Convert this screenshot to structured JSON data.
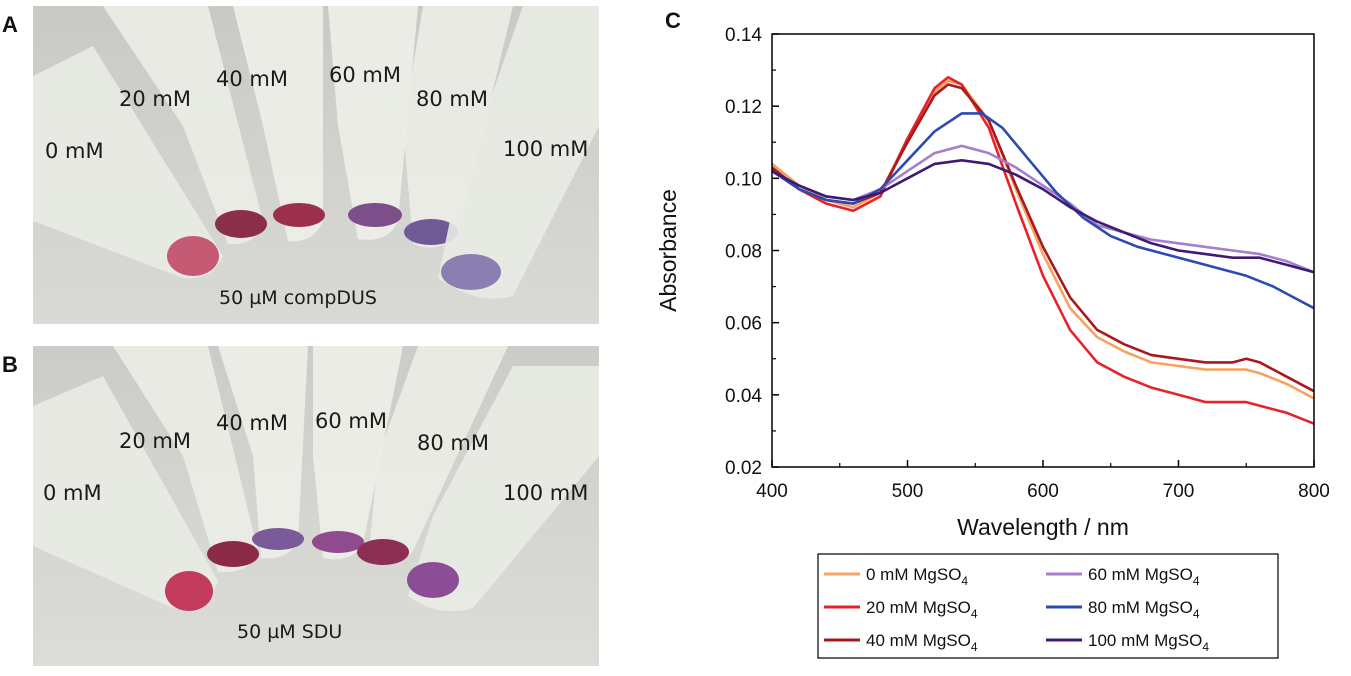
{
  "panels": {
    "a": {
      "letter": "A",
      "tube_labels": [
        "0 mM",
        "20 mM",
        "40 mM",
        "60 mM",
        "80 mM",
        "100 mM"
      ],
      "caption": "50 µM compDUS"
    },
    "b": {
      "letter": "B",
      "tube_labels": [
        "0 mM",
        "20 mM",
        "40 mM",
        "60 mM",
        "80 mM",
        "100 mM"
      ],
      "caption": "50 µM SDU"
    },
    "c": {
      "letter": "C"
    }
  },
  "chart_data": {
    "type": "line",
    "xlabel": "Wavelength / nm",
    "ylabel": "Absorbance",
    "xlim": [
      400,
      800
    ],
    "ylim": [
      0.02,
      0.14
    ],
    "xticks": [
      400,
      500,
      600,
      700,
      800
    ],
    "yticks": [
      "0.02",
      "0.04",
      "0.06",
      "0.08",
      "0.10",
      "0.12",
      "0.14"
    ],
    "legend_unit": "MgSO",
    "legend_subscript": "4",
    "series": [
      {
        "name": "0 mM MgSO4",
        "label": "0 mM ",
        "color": "#f4a460",
        "x": [
          400,
          420,
          440,
          460,
          480,
          500,
          520,
          530,
          540,
          560,
          580,
          600,
          620,
          640,
          660,
          680,
          700,
          720,
          740,
          750,
          760,
          780,
          800
        ],
        "y": [
          0.104,
          0.098,
          0.094,
          0.092,
          0.096,
          0.111,
          0.124,
          0.127,
          0.126,
          0.116,
          0.097,
          0.079,
          0.064,
          0.056,
          0.052,
          0.049,
          0.048,
          0.047,
          0.047,
          0.047,
          0.046,
          0.043,
          0.039
        ]
      },
      {
        "name": "20 mM MgSO4",
        "label": "20 mM ",
        "color": "#e8222a",
        "x": [
          400,
          420,
          440,
          460,
          480,
          500,
          520,
          530,
          540,
          560,
          580,
          600,
          620,
          640,
          660,
          680,
          700,
          720,
          740,
          750,
          760,
          780,
          800
        ],
        "y": [
          0.103,
          0.097,
          0.093,
          0.091,
          0.095,
          0.111,
          0.125,
          0.128,
          0.126,
          0.114,
          0.093,
          0.073,
          0.058,
          0.049,
          0.045,
          0.042,
          0.04,
          0.038,
          0.038,
          0.038,
          0.037,
          0.035,
          0.032
        ]
      },
      {
        "name": "40 mM MgSO4",
        "label": "40 mM ",
        "color": "#a8191f",
        "x": [
          400,
          420,
          440,
          460,
          480,
          500,
          520,
          530,
          540,
          560,
          580,
          600,
          620,
          640,
          660,
          680,
          700,
          720,
          740,
          750,
          760,
          780,
          800
        ],
        "y": [
          0.103,
          0.097,
          0.094,
          0.093,
          0.096,
          0.11,
          0.123,
          0.126,
          0.125,
          0.116,
          0.098,
          0.081,
          0.067,
          0.058,
          0.054,
          0.051,
          0.05,
          0.049,
          0.049,
          0.05,
          0.049,
          0.045,
          0.041
        ]
      },
      {
        "name": "60 mM MgSO4",
        "label": "60 mM ",
        "color": "#a57ed0",
        "x": [
          400,
          420,
          440,
          460,
          480,
          500,
          520,
          540,
          560,
          580,
          600,
          620,
          640,
          660,
          680,
          700,
          720,
          740,
          760,
          780,
          800
        ],
        "y": [
          0.102,
          0.098,
          0.095,
          0.094,
          0.097,
          0.102,
          0.107,
          0.109,
          0.107,
          0.103,
          0.098,
          0.093,
          0.087,
          0.085,
          0.083,
          0.082,
          0.081,
          0.08,
          0.079,
          0.077,
          0.074
        ]
      },
      {
        "name": "80 mM MgSO4",
        "label": "80 mM ",
        "color": "#2b4bb0",
        "x": [
          400,
          420,
          440,
          460,
          480,
          500,
          520,
          540,
          555,
          570,
          590,
          610,
          630,
          650,
          670,
          690,
          710,
          730,
          750,
          770,
          790,
          800
        ],
        "y": [
          0.102,
          0.097,
          0.094,
          0.093,
          0.097,
          0.105,
          0.113,
          0.118,
          0.118,
          0.114,
          0.105,
          0.096,
          0.089,
          0.084,
          0.081,
          0.079,
          0.077,
          0.075,
          0.073,
          0.07,
          0.066,
          0.064
        ]
      },
      {
        "name": "100 mM MgSO4",
        "label": "100 mM ",
        "color": "#3e1a73",
        "x": [
          400,
          420,
          440,
          460,
          480,
          500,
          520,
          540,
          560,
          580,
          600,
          620,
          640,
          660,
          680,
          700,
          720,
          740,
          760,
          780,
          800
        ],
        "y": [
          0.102,
          0.098,
          0.095,
          0.094,
          0.096,
          0.1,
          0.104,
          0.105,
          0.104,
          0.101,
          0.097,
          0.092,
          0.088,
          0.085,
          0.082,
          0.08,
          0.079,
          0.078,
          0.078,
          0.076,
          0.074
        ]
      }
    ]
  }
}
